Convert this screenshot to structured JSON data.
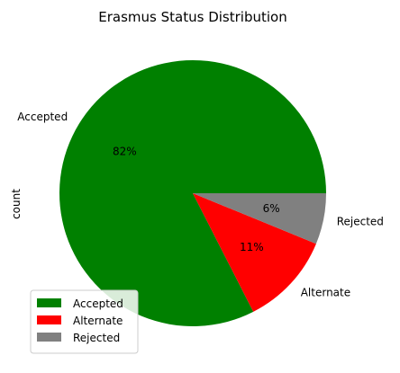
{
  "chart_data": {
    "type": "pie",
    "title": "Erasmus Status Distribution",
    "ylabel": "count",
    "slices": [
      {
        "label": "Accepted",
        "percent": 82.5,
        "percent_label": "82%",
        "color": "#008000"
      },
      {
        "label": "Alternate",
        "percent": 11.3,
        "percent_label": "11%",
        "color": "#ff0000"
      },
      {
        "label": "Rejected",
        "percent": 6.2,
        "percent_label": "6%",
        "color": "#808080"
      }
    ],
    "legend": {
      "placement": "lower-left",
      "entries": [
        "Accepted",
        "Alternate",
        "Rejected"
      ]
    }
  }
}
